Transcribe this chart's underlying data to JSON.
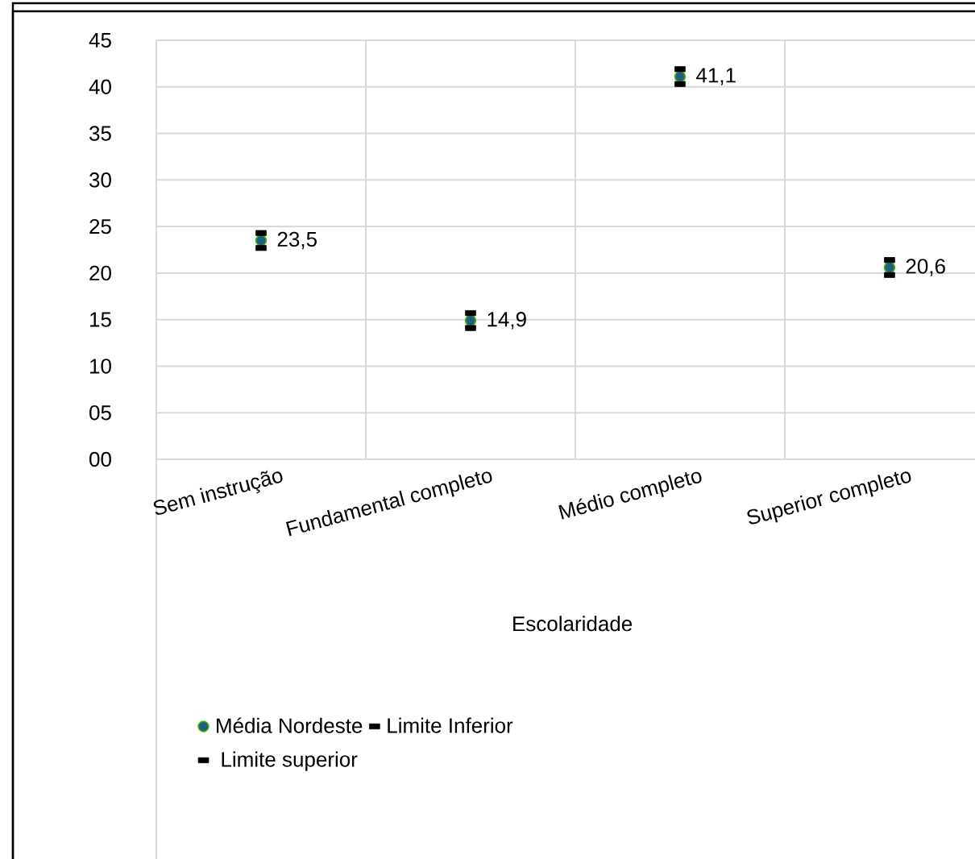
{
  "chart_data": {
    "type": "scatter",
    "xlabel": "Escolaridade",
    "categories": [
      "Sem instrução",
      "Fundamental completo",
      "Médio completo",
      "Superior completo"
    ],
    "series": [
      {
        "name": "Média Nordeste",
        "color": "#1f5f87",
        "marker": "circle",
        "values": [
          23.5,
          14.9,
          41.1,
          20.6
        ],
        "value_labels": [
          "23,5",
          "14,9",
          "41,1",
          "20,6"
        ]
      },
      {
        "name": "Limite Inferior",
        "color": "#000000",
        "marker": "square",
        "values": [
          22.7,
          14.1,
          40.3,
          19.8
        ]
      },
      {
        "name": "Limite superior",
        "color": "#000000",
        "marker": "square",
        "values": [
          24.3,
          15.7,
          41.9,
          21.4
        ]
      }
    ],
    "ylim": [
      0,
      45
    ],
    "yticks": [
      {
        "value": 0,
        "label": "00"
      },
      {
        "value": 5,
        "label": "05"
      },
      10,
      15,
      20,
      25,
      30,
      35,
      40,
      45
    ],
    "grid": true,
    "legend": "bottom"
  }
}
